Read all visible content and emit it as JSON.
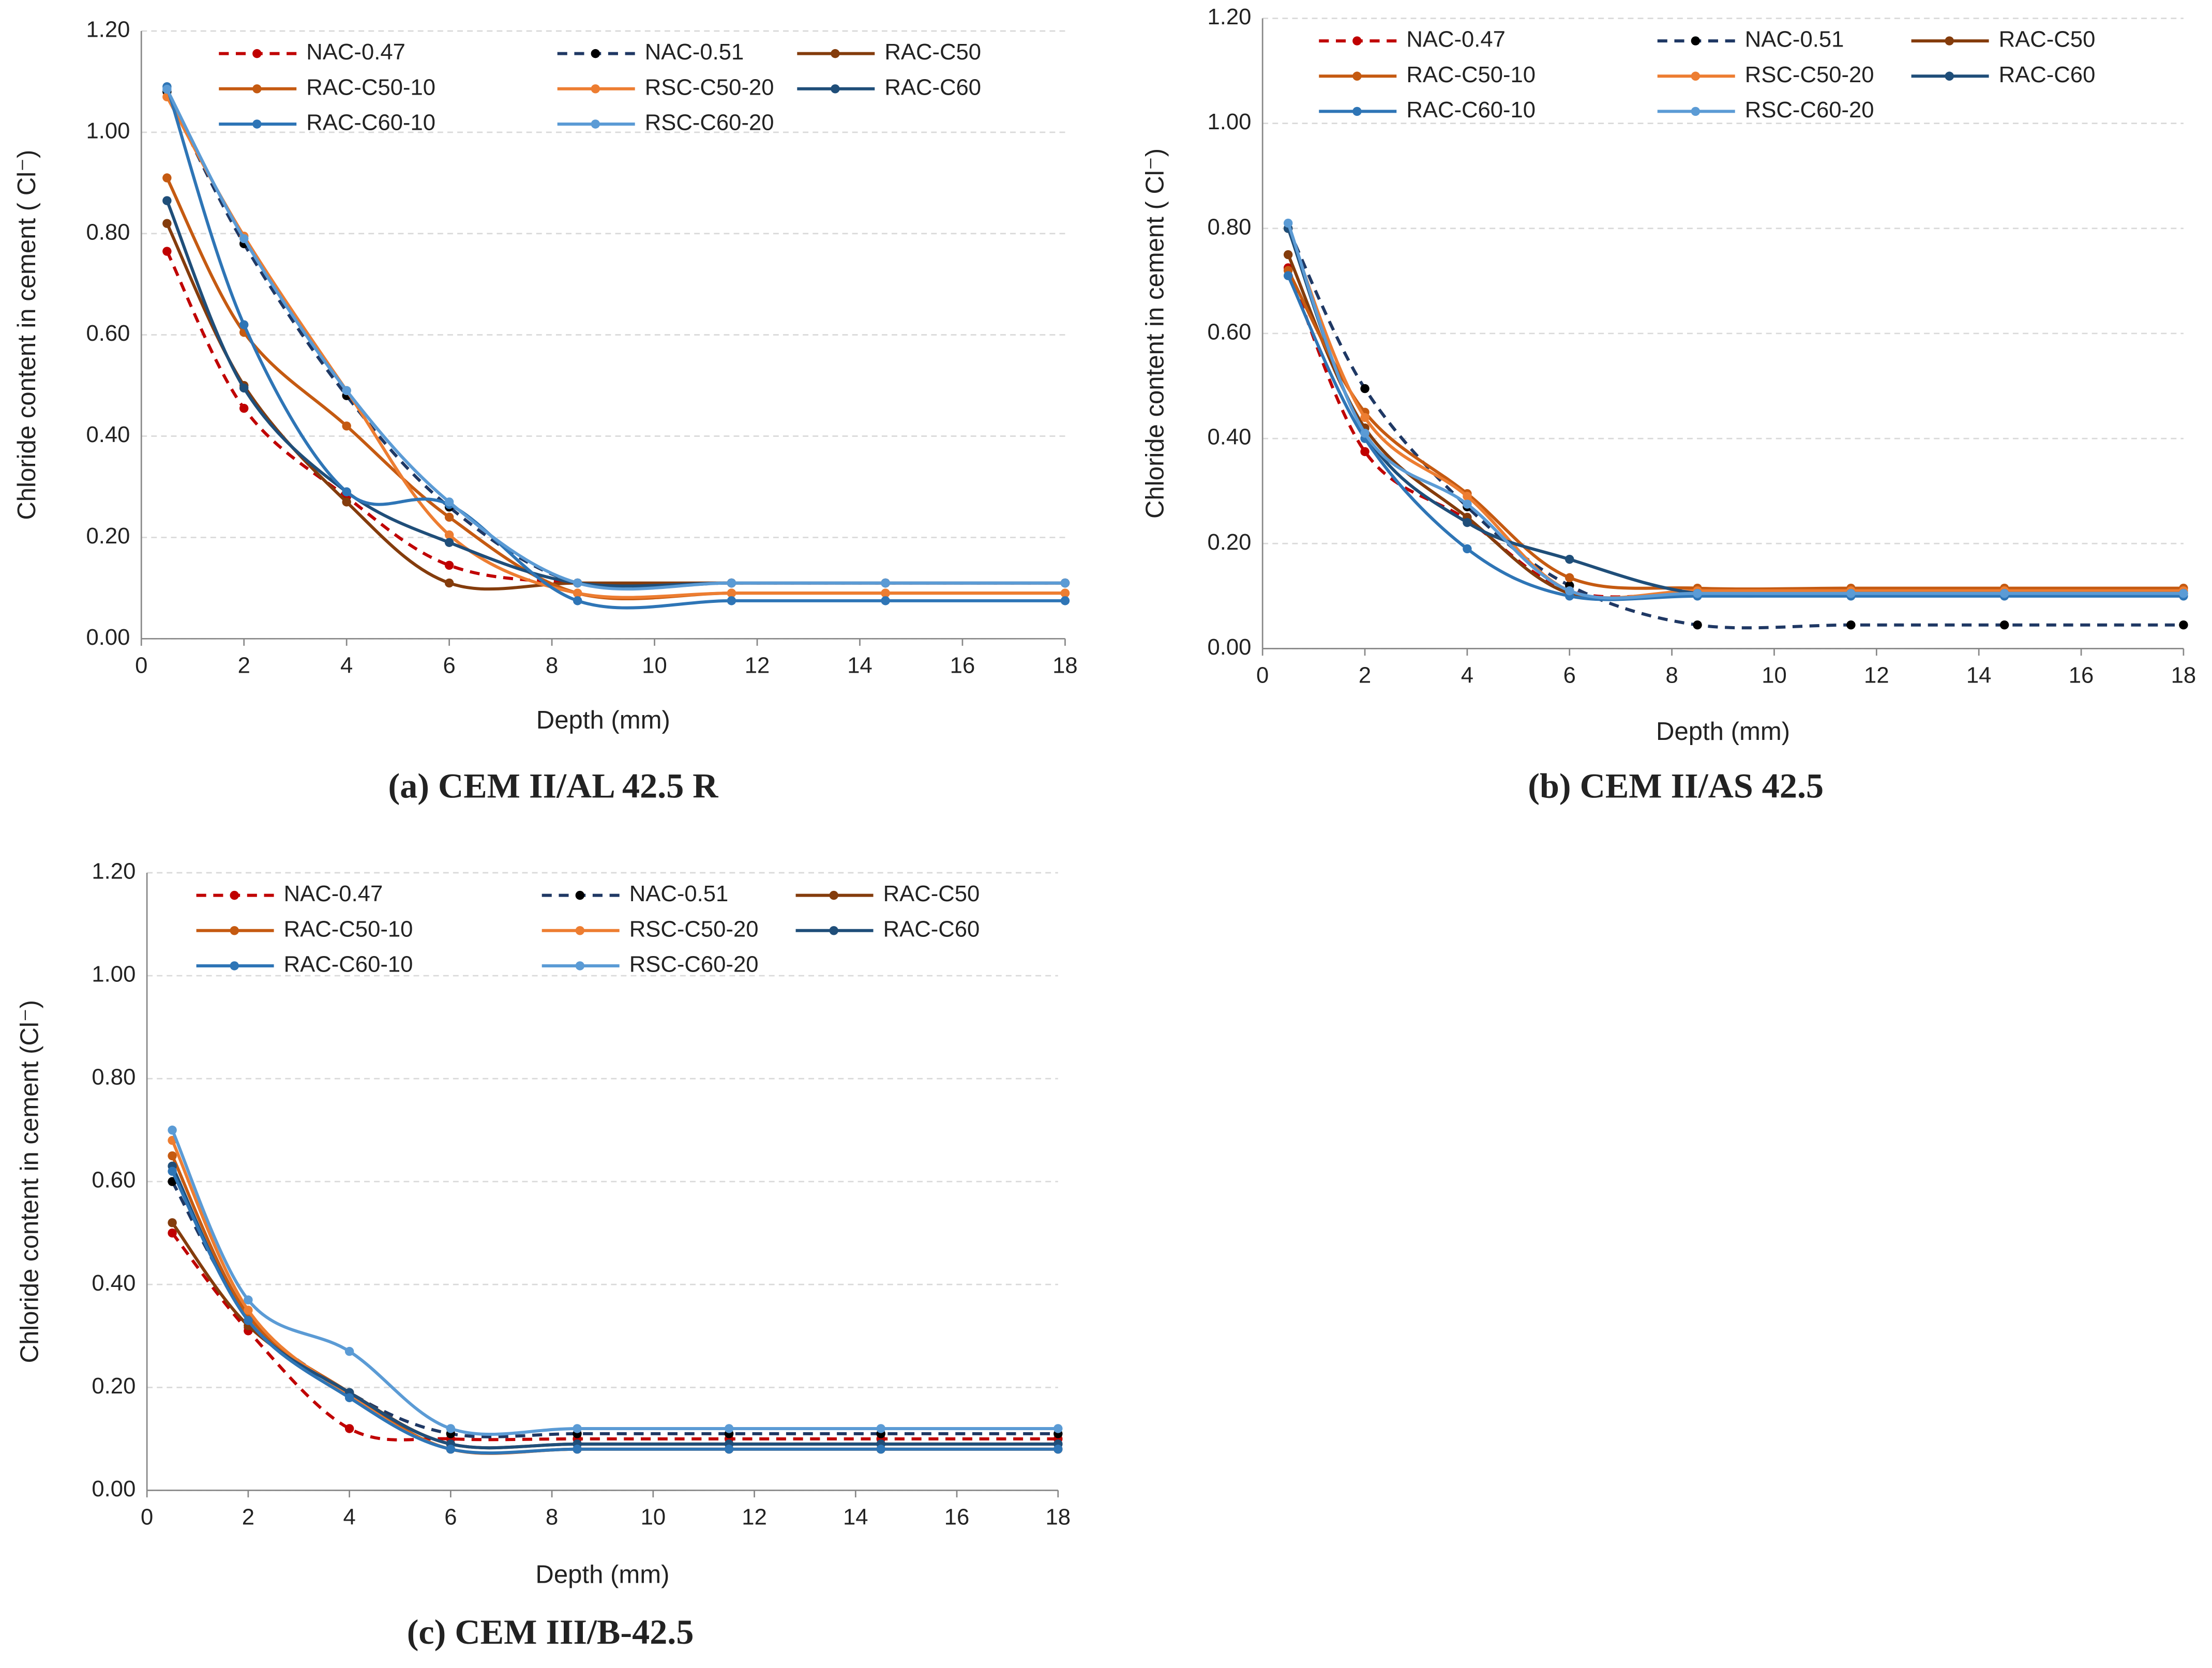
{
  "chart_data": [
    {
      "type": "line",
      "title": "(a) CEM II/AL 42.5 R",
      "xlabel": "Depth (mm)",
      "ylabel": "Chloride content in cement ( Cl⁻)",
      "x": [
        0.5,
        2,
        4,
        6,
        8.5,
        11.5,
        14.5,
        18
      ],
      "xlim": [
        0,
        18
      ],
      "xticks": [
        0,
        2,
        4,
        6,
        8,
        10,
        12,
        14,
        16,
        18
      ],
      "ylim": [
        0,
        1.2
      ],
      "yticks": [
        {
          "value": 0,
          "label": "0.00"
        },
        {
          "value": 0.2,
          "label": "0.20"
        },
        {
          "value": 0.4,
          "label": "0.40"
        },
        {
          "value": 0.6,
          "label": "0.60"
        },
        {
          "value": 0.8,
          "label": "0.80"
        },
        {
          "value": 1.0,
          "label": "1.00"
        },
        {
          "value": 1.2,
          "label": "1.20"
        }
      ],
      "grid": true,
      "series": [
        {
          "name": "NAC-0.47",
          "color": "#c00000",
          "dashed": true,
          "values": [
            0.765,
            0.455,
            0.28,
            0.145,
            0.11,
            0.11,
            0.11,
            0.11
          ]
        },
        {
          "name": "NAC-0.51",
          "color": "#1f3864",
          "dashed": true,
          "values": [
            1.08,
            0.78,
            0.48,
            0.26,
            0.11,
            0.11,
            0.11,
            0.11
          ]
        },
        {
          "name": "RAC-C50",
          "color": "#843c0c",
          "values": [
            0.82,
            0.5,
            0.27,
            0.11,
            0.11,
            0.11,
            0.11,
            0.11
          ]
        },
        {
          "name": "RAC-C50-10",
          "color": "#c55a11",
          "values": [
            0.91,
            0.605,
            0.42,
            0.24,
            0.09,
            0.09,
            0.09,
            0.09
          ]
        },
        {
          "name": "RSC-C50-20",
          "color": "#ed7d31",
          "values": [
            1.07,
            0.795,
            0.49,
            0.205,
            0.09,
            0.09,
            0.09,
            0.09
          ]
        },
        {
          "name": "RAC-C60",
          "color": "#1f4e79",
          "values": [
            0.865,
            0.495,
            0.29,
            0.19,
            0.11,
            0.11,
            0.11,
            0.11
          ]
        },
        {
          "name": "RAC-C60-10",
          "color": "#2e75b6",
          "values": [
            1.09,
            0.62,
            0.29,
            0.265,
            0.075,
            0.075,
            0.075,
            0.075
          ]
        },
        {
          "name": "RSC-C60-20",
          "color": "#5b9bd5",
          "values": [
            1.085,
            0.79,
            0.49,
            0.27,
            0.11,
            0.11,
            0.11,
            0.11
          ]
        }
      ]
    },
    {
      "type": "line",
      "title": "(b) CEM II/AS 42.5",
      "xlabel": "Depth (mm)",
      "ylabel": "Chloride content in cement ( Cl⁻)",
      "x": [
        0.5,
        2,
        4,
        6,
        8.5,
        11.5,
        14.5,
        18
      ],
      "xlim": [
        0,
        18
      ],
      "xticks": [
        0,
        2,
        4,
        6,
        8,
        10,
        12,
        14,
        16,
        18
      ],
      "ylim": [
        0,
        1.2
      ],
      "yticks": [
        {
          "value": 0,
          "label": "0.00"
        },
        {
          "value": 0.2,
          "label": "0.20"
        },
        {
          "value": 0.4,
          "label": "0.40"
        },
        {
          "value": 0.6,
          "label": "0.60"
        },
        {
          "value": 0.8,
          "label": "0.80"
        },
        {
          "value": 1.0,
          "label": "1.00"
        },
        {
          "value": 1.2,
          "label": "1.20"
        }
      ],
      "grid": true,
      "series": [
        {
          "name": "NAC-0.47",
          "color": "#c00000",
          "dashed": true,
          "values": [
            0.725,
            0.375,
            0.245,
            0.11,
            0.105,
            0.105,
            0.105,
            0.105
          ]
        },
        {
          "name": "NAC-0.51",
          "color": "#1f3864",
          "dashed": true,
          "values": [
            0.8,
            0.495,
            0.27,
            0.12,
            0.045,
            0.045,
            0.045,
            0.045
          ]
        },
        {
          "name": "RAC-C50",
          "color": "#843c0c",
          "values": [
            0.75,
            0.42,
            0.25,
            0.105,
            0.105,
            0.105,
            0.105,
            0.105
          ]
        },
        {
          "name": "RAC-C50-10",
          "color": "#c55a11",
          "values": [
            0.72,
            0.45,
            0.295,
            0.135,
            0.115,
            0.115,
            0.115,
            0.115
          ]
        },
        {
          "name": "RSC-C50-20",
          "color": "#ed7d31",
          "values": [
            0.8,
            0.44,
            0.29,
            0.11,
            0.11,
            0.11,
            0.11,
            0.11
          ]
        },
        {
          "name": "RAC-C60",
          "color": "#1f4e79",
          "values": [
            0.8,
            0.41,
            0.24,
            0.17,
            0.105,
            0.105,
            0.105,
            0.105
          ]
        },
        {
          "name": "RAC-C60-10",
          "color": "#2e75b6",
          "values": [
            0.71,
            0.4,
            0.19,
            0.1,
            0.1,
            0.1,
            0.1,
            0.1
          ]
        },
        {
          "name": "RSC-C60-20",
          "color": "#5b9bd5",
          "values": [
            0.81,
            0.41,
            0.275,
            0.11,
            0.105,
            0.105,
            0.105,
            0.105
          ]
        }
      ]
    },
    {
      "type": "line",
      "title": "(c) CEM III/B-42.5",
      "xlabel": "Depth (mm)",
      "ylabel": "Chloride content in cement (Cl⁻)",
      "x": [
        0.5,
        2,
        4,
        6,
        8.5,
        11.5,
        14.5,
        18
      ],
      "xlim": [
        0,
        18
      ],
      "xticks": [
        0,
        2,
        4,
        6,
        8,
        10,
        12,
        14,
        16,
        18
      ],
      "ylim": [
        0,
        1.2
      ],
      "yticks": [
        {
          "value": 0,
          "label": "0.00"
        },
        {
          "value": 0.2,
          "label": "0.20"
        },
        {
          "value": 0.4,
          "label": "0.40"
        },
        {
          "value": 0.6,
          "label": "0.60"
        },
        {
          "value": 0.8,
          "label": "0.80"
        },
        {
          "value": 1.0,
          "label": "1.00"
        },
        {
          "value": 1.2,
          "label": "1.20"
        }
      ],
      "grid": true,
      "series": [
        {
          "name": "NAC-0.47",
          "color": "#c00000",
          "dashed": true,
          "values": [
            0.5,
            0.31,
            0.12,
            0.1,
            0.1,
            0.1,
            0.1,
            0.1
          ]
        },
        {
          "name": "NAC-0.51",
          "color": "#1f3864",
          "dashed": true,
          "values": [
            0.6,
            0.34,
            0.19,
            0.11,
            0.11,
            0.11,
            0.11,
            0.11
          ]
        },
        {
          "name": "RAC-C50",
          "color": "#843c0c",
          "values": [
            0.52,
            0.32,
            0.19,
            0.09,
            0.09,
            0.09,
            0.09,
            0.09
          ]
        },
        {
          "name": "RAC-C50-10",
          "color": "#c55a11",
          "values": [
            0.65,
            0.34,
            0.19,
            0.08,
            0.08,
            0.08,
            0.08,
            0.08
          ]
        },
        {
          "name": "RSC-C50-20",
          "color": "#ed7d31",
          "values": [
            0.68,
            0.35,
            0.185,
            0.08,
            0.08,
            0.08,
            0.08,
            0.08
          ]
        },
        {
          "name": "RAC-C60",
          "color": "#1f4e79",
          "values": [
            0.63,
            0.33,
            0.19,
            0.09,
            0.09,
            0.09,
            0.09,
            0.09
          ]
        },
        {
          "name": "RAC-C60-10",
          "color": "#2e75b6",
          "values": [
            0.62,
            0.33,
            0.18,
            0.08,
            0.08,
            0.08,
            0.08,
            0.08
          ]
        },
        {
          "name": "RSC-C60-20",
          "color": "#5b9bd5",
          "values": [
            0.7,
            0.37,
            0.27,
            0.12,
            0.12,
            0.12,
            0.12,
            0.12
          ]
        }
      ]
    }
  ]
}
